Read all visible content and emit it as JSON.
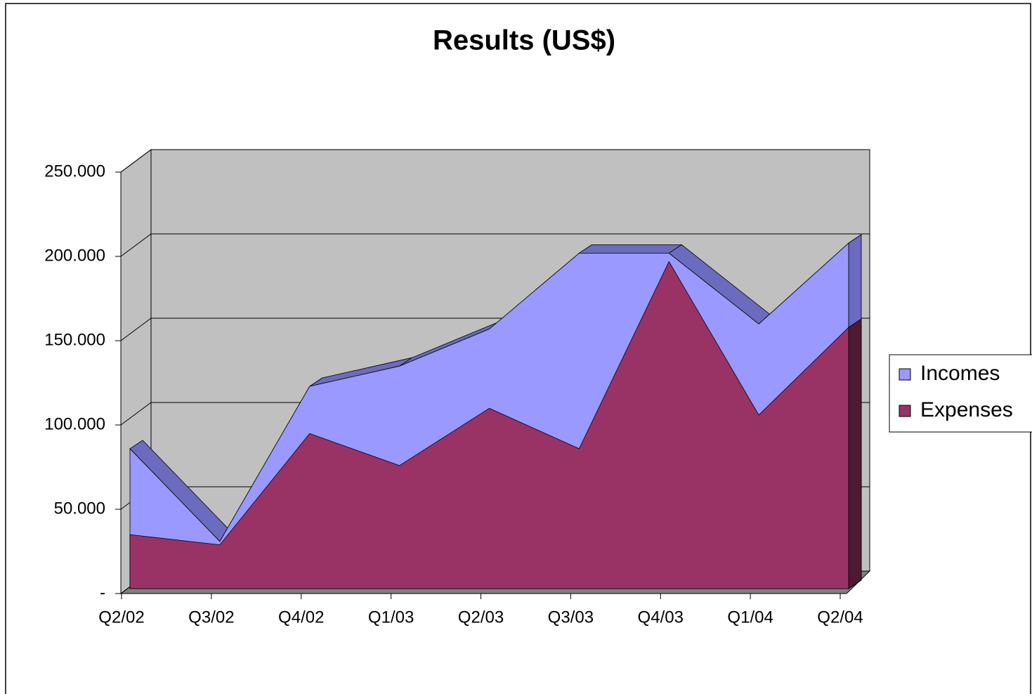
{
  "chart_data": {
    "type": "area",
    "title": "Results (US$)",
    "categories": [
      "Q2/02",
      "Q3/02",
      "Q4/02",
      "Q1/03",
      "Q2/03",
      "Q3/03",
      "Q4/03",
      "Q1/04",
      "Q2/04"
    ],
    "series": [
      {
        "name": "Incomes",
        "color": "#9999ff",
        "values": [
          83000,
          28000,
          120000,
          132000,
          154000,
          199000,
          199000,
          157000,
          205000
        ]
      },
      {
        "name": "Expenses",
        "color": "#993366",
        "values": [
          32000,
          26000,
          92000,
          73000,
          107000,
          83000,
          194000,
          103000,
          155000
        ]
      }
    ],
    "ylim": [
      0,
      250000
    ],
    "yticks": [
      {
        "value": 0,
        "label": "-"
      },
      {
        "value": 50000,
        "label": "50.000"
      },
      {
        "value": 100000,
        "label": "100.000"
      },
      {
        "value": 150000,
        "label": "150.000"
      },
      {
        "value": 200000,
        "label": "200.000"
      },
      {
        "value": 250000,
        "label": "250.000"
      }
    ],
    "grid": true,
    "legend": "right"
  }
}
